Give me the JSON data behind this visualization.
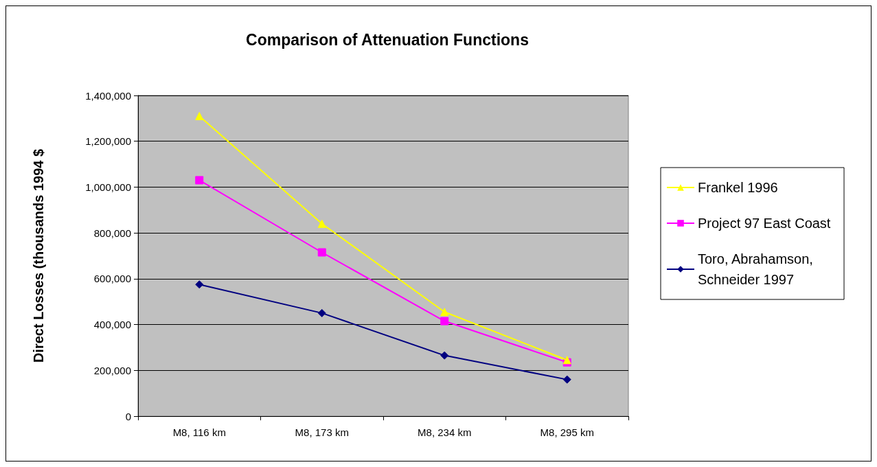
{
  "chart_data": {
    "type": "line",
    "title": "Comparison of Attenuation Functions",
    "ylabel": "Direct Losses (thousands 1994 $",
    "categories": [
      "M8, 116 km",
      "M8, 173 km",
      "M8, 234 km",
      "M8, 295 km"
    ],
    "series": [
      {
        "name": "Frankel 1996",
        "color": "#ffff00",
        "marker": "triangle",
        "values": [
          1310000,
          840000,
          455000,
          245000
        ]
      },
      {
        "name": "Project 97 East Coast",
        "color": "#ff00ff",
        "marker": "square",
        "values": [
          1030000,
          715000,
          415000,
          235000
        ]
      },
      {
        "name": "Toro, Abrahamson, Schneider 1997",
        "color": "#000080",
        "marker": "diamond",
        "values": [
          575000,
          450000,
          265000,
          160000
        ]
      }
    ],
    "ylim": [
      0,
      1400000
    ],
    "yticks": [
      {
        "value": 0,
        "label": "0"
      },
      {
        "value": 200000,
        "label": "200,000"
      },
      {
        "value": 400000,
        "label": "400,000"
      },
      {
        "value": 600000,
        "label": "600,000"
      },
      {
        "value": 800000,
        "label": "800,000"
      },
      {
        "value": 1000000,
        "label": "1,000,000"
      },
      {
        "value": 1200000,
        "label": "1,200,000"
      },
      {
        "value": 1400000,
        "label": "1,400,000"
      }
    ],
    "grid": "y",
    "legend": "right",
    "line_style": "solid"
  }
}
